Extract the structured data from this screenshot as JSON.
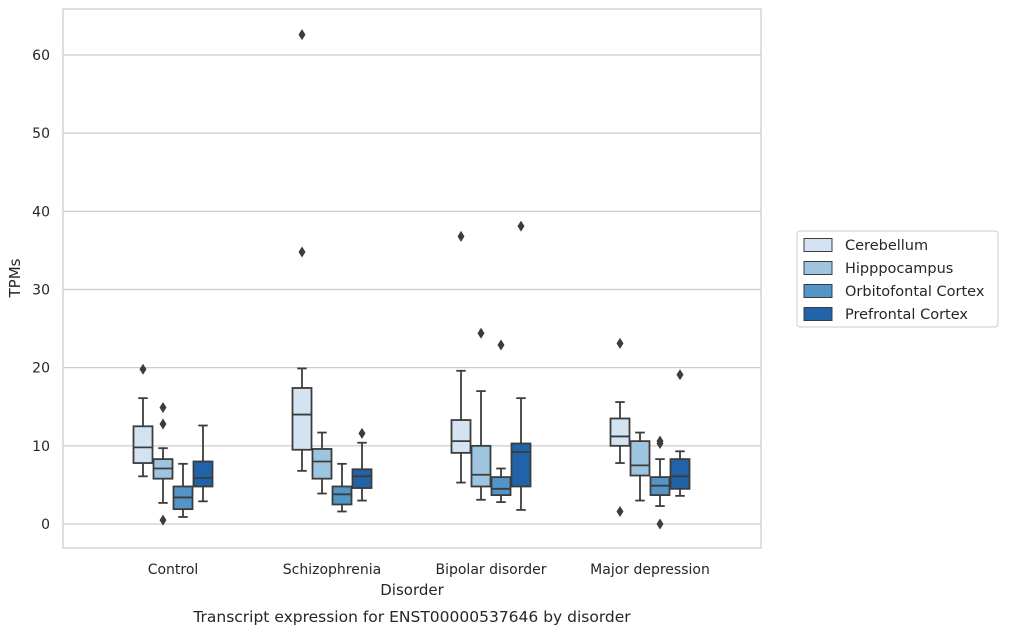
{
  "chart_data": {
    "type": "box",
    "xlabel": "Disorder",
    "ylabel": "TPMs",
    "caption": "Transcript expression for ENST00000537646 by disorder",
    "ylim": [
      -3,
      66
    ],
    "yticks": [
      0,
      10,
      20,
      30,
      40,
      50,
      60
    ],
    "grid": "horizontal",
    "legend_position": "right",
    "categories": [
      "Control",
      "Schizophrenia",
      "Bipolar disorder",
      "Major depression"
    ],
    "series": [
      {
        "name": "Cerebellum",
        "color": "#d4e3f2",
        "boxes": [
          {
            "whislo": 6.1,
            "q1": 7.8,
            "med": 9.8,
            "q3": 12.5,
            "whishi": 16.1,
            "fliers": [
              19.8
            ]
          },
          {
            "whislo": 6.8,
            "q1": 9.5,
            "med": 14.0,
            "q3": 17.4,
            "whishi": 19.9,
            "fliers": [
              34.8,
              62.6
            ]
          },
          {
            "whislo": 5.3,
            "q1": 9.1,
            "med": 10.6,
            "q3": 13.3,
            "whishi": 19.6,
            "fliers": [
              36.8
            ]
          },
          {
            "whislo": 7.8,
            "q1": 10.0,
            "med": 11.2,
            "q3": 13.5,
            "whishi": 15.6,
            "fliers": [
              1.6,
              23.1
            ]
          }
        ]
      },
      {
        "name": "Hipppocampus",
        "color": "#9ec5df",
        "boxes": [
          {
            "whislo": 2.7,
            "q1": 5.8,
            "med": 7.1,
            "q3": 8.3,
            "whishi": 9.7,
            "fliers": [
              0.5,
              12.8,
              14.9
            ]
          },
          {
            "whislo": 3.9,
            "q1": 5.8,
            "med": 8.0,
            "q3": 9.6,
            "whishi": 11.7,
            "fliers": []
          },
          {
            "whislo": 3.1,
            "q1": 4.8,
            "med": 6.3,
            "q3": 10.0,
            "whishi": 17.0,
            "fliers": [
              24.4
            ]
          },
          {
            "whislo": 3.0,
            "q1": 6.2,
            "med": 7.5,
            "q3": 10.6,
            "whishi": 11.7,
            "fliers": []
          }
        ]
      },
      {
        "name": "Orbitofontal Cortex",
        "color": "#5495c7",
        "boxes": [
          {
            "whislo": 0.9,
            "q1": 1.9,
            "med": 3.4,
            "q3": 4.8,
            "whishi": 7.7,
            "fliers": []
          },
          {
            "whislo": 1.6,
            "q1": 2.5,
            "med": 3.8,
            "q3": 4.8,
            "whishi": 7.7,
            "fliers": []
          },
          {
            "whislo": 2.8,
            "q1": 3.7,
            "med": 4.5,
            "q3": 6.0,
            "whishi": 7.1,
            "fliers": [
              22.9
            ]
          },
          {
            "whislo": 2.3,
            "q1": 3.7,
            "med": 4.9,
            "q3": 6.0,
            "whishi": 8.3,
            "fliers": [
              0.0,
              10.3,
              10.6
            ]
          }
        ]
      },
      {
        "name": "Prefrontal Cortex",
        "color": "#2163a8",
        "boxes": [
          {
            "whislo": 2.9,
            "q1": 4.8,
            "med": 5.9,
            "q3": 8.0,
            "whishi": 12.6,
            "fliers": []
          },
          {
            "whislo": 3.0,
            "q1": 4.6,
            "med": 6.1,
            "q3": 7.0,
            "whishi": 10.4,
            "fliers": [
              11.6
            ]
          },
          {
            "whislo": 1.8,
            "q1": 4.8,
            "med": 9.2,
            "q3": 10.3,
            "whishi": 16.1,
            "fliers": [
              38.1
            ]
          },
          {
            "whislo": 3.6,
            "q1": 4.5,
            "med": 6.1,
            "q3": 8.3,
            "whishi": 9.3,
            "fliers": [
              19.1
            ]
          }
        ]
      }
    ]
  }
}
